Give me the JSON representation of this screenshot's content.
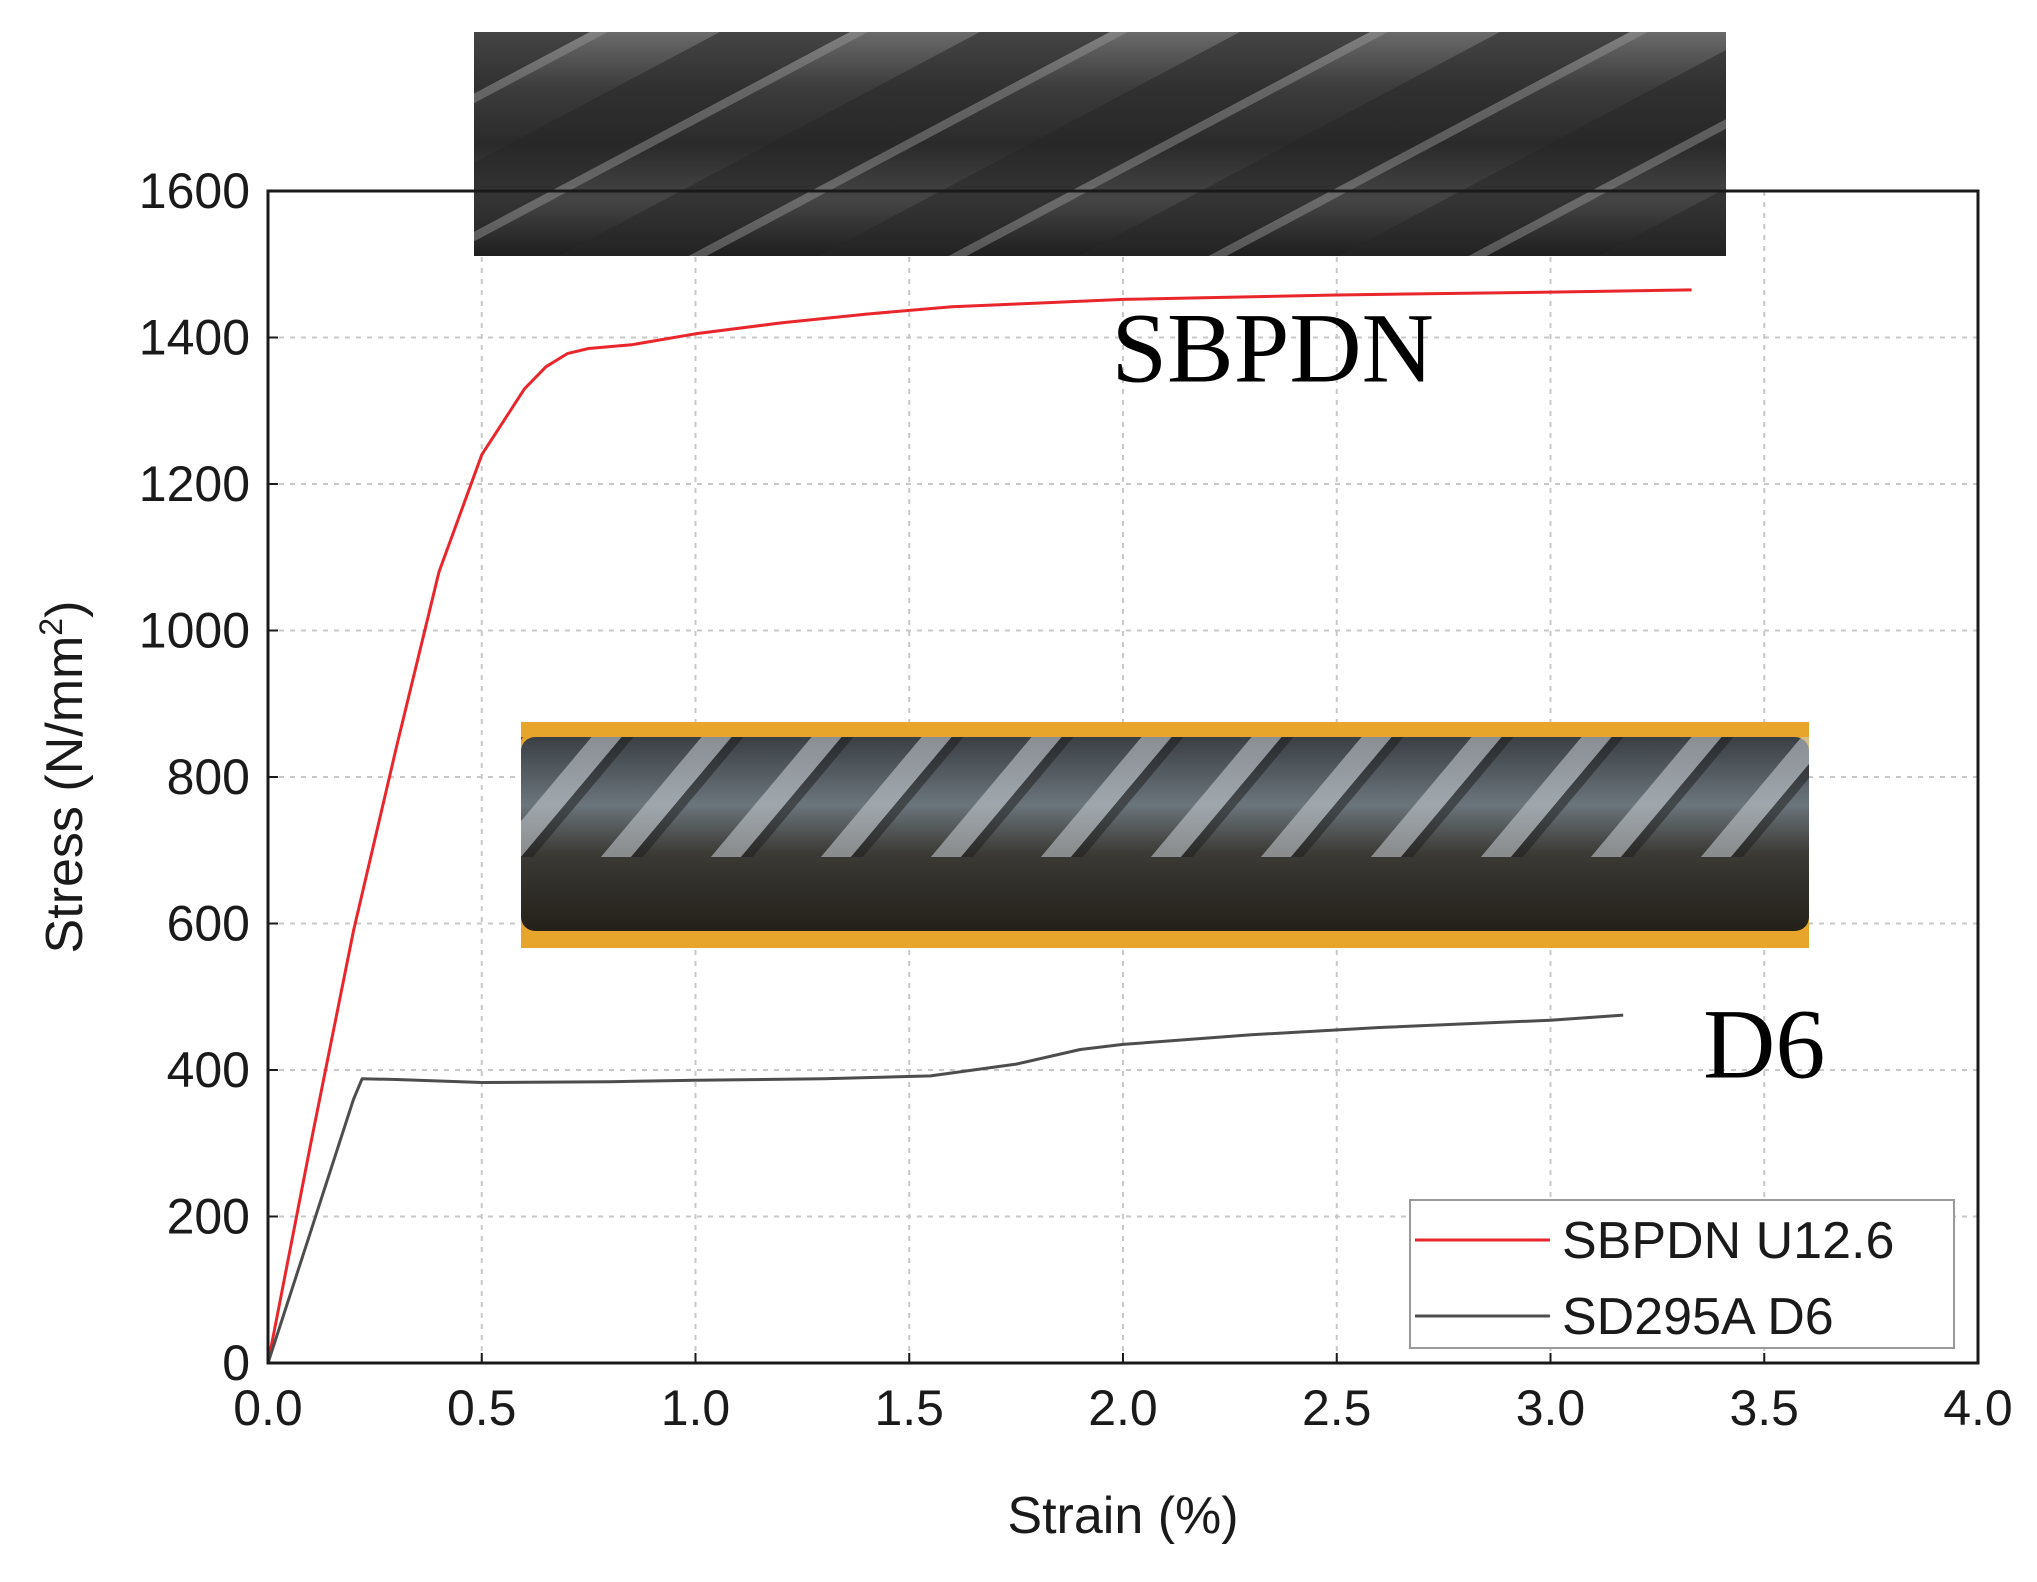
{
  "chart_data": {
    "type": "line",
    "title": "",
    "xlabel": "Strain (%)",
    "ylabel_main": "Stress (N/mm",
    "ylabel_sup": "2",
    "ylabel_close": ")",
    "xlim": [
      0,
      4.0
    ],
    "ylim": [
      0,
      1600
    ],
    "x_ticks": [
      "0.0",
      "0.5",
      "1.0",
      "1.5",
      "2.0",
      "2.5",
      "3.0",
      "3.5",
      "4.0"
    ],
    "y_ticks": [
      "0",
      "200",
      "400",
      "600",
      "800",
      "1000",
      "1200",
      "1400",
      "1600"
    ],
    "grid": true,
    "legend_position": "bottom-right",
    "series": [
      {
        "name": "SBPDN U12.6",
        "color": "#e8262b",
        "x": [
          0,
          0.1,
          0.2,
          0.3,
          0.4,
          0.5,
          0.6,
          0.65,
          0.7,
          0.75,
          0.85,
          1.0,
          1.2,
          1.4,
          1.6,
          1.8,
          2.0,
          2.5,
          3.0,
          3.33
        ],
        "y": [
          0,
          300,
          590,
          840,
          1080,
          1240,
          1330,
          1360,
          1378,
          1385,
          1390,
          1405,
          1420,
          1432,
          1442,
          1447,
          1452,
          1458,
          1462,
          1465
        ]
      },
      {
        "name": "SD295A D6",
        "color": "#4d4d4d",
        "x": [
          0,
          0.1,
          0.2,
          0.22,
          0.3,
          0.5,
          0.8,
          1.0,
          1.3,
          1.55,
          1.75,
          1.9,
          2.0,
          2.3,
          2.6,
          3.0,
          3.17
        ],
        "y": [
          0,
          180,
          360,
          388,
          387,
          383,
          384,
          386,
          388,
          392,
          408,
          428,
          435,
          448,
          458,
          468,
          475
        ]
      }
    ],
    "annotations": [
      {
        "text": "SBPDN",
        "x": 2.35,
        "y": 1340
      },
      {
        "text": "D6",
        "x": 3.5,
        "y": 390
      }
    ]
  }
}
